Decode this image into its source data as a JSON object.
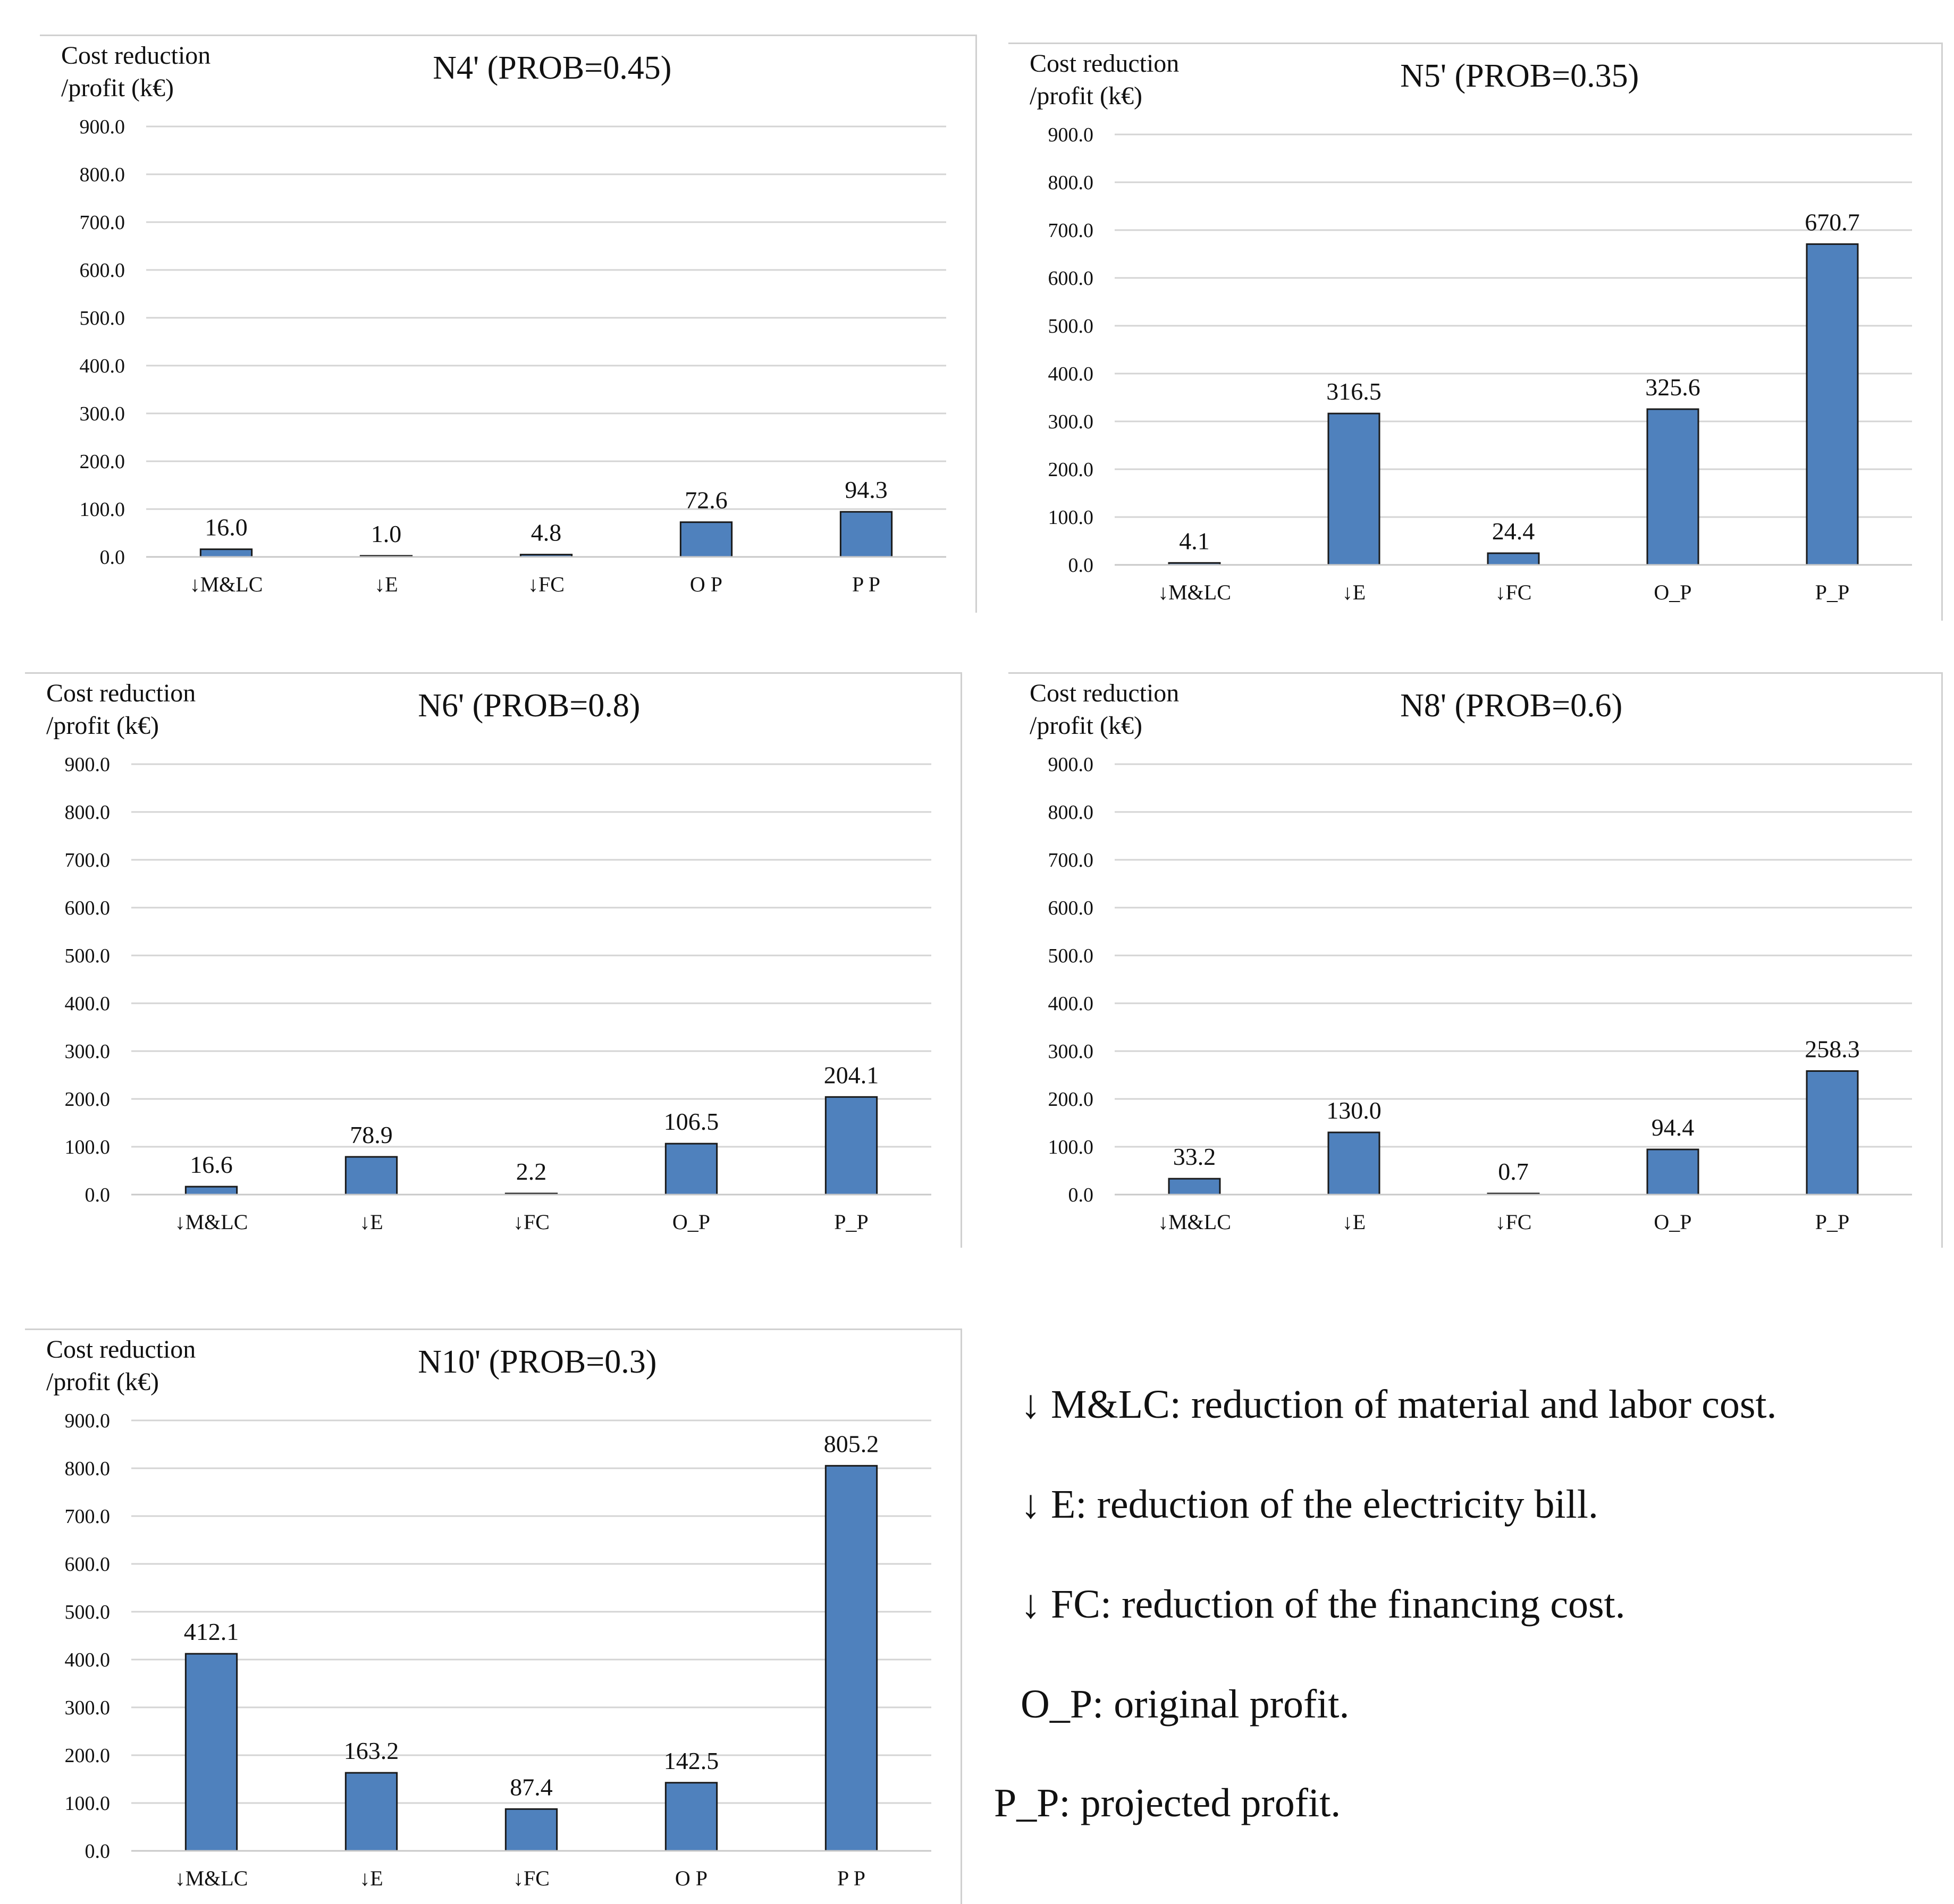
{
  "chart_data": [
    {
      "type": "bar",
      "title": "N4' (PROB=0.45)",
      "ylabel": "Cost reduction\n/profit (k€)",
      "categories": [
        "↓M&LC",
        "↓E",
        "↓FC",
        "O_P",
        "P_P"
      ],
      "category_display": [
        "↓M&LC",
        "↓E",
        "↓FC",
        "O  P",
        "P  P"
      ],
      "values": [
        16.0,
        1.0,
        4.8,
        72.6,
        94.3
      ],
      "value_labels": [
        "16.0",
        "1.0",
        "4.8",
        "72.6",
        "94.3"
      ],
      "ylim": [
        0,
        900
      ],
      "yticks": [
        "0.0",
        "100.0",
        "200.0",
        "300.0",
        "400.0",
        "500.0",
        "600.0",
        "700.0",
        "800.0",
        "900.0"
      ],
      "grid": true,
      "bar_color": "#4F81BD"
    },
    {
      "type": "bar",
      "title": "N5' (PROB=0.35)",
      "ylabel": "Cost reduction\n/profit (k€)",
      "categories": [
        "↓M&LC",
        "↓E",
        "↓FC",
        "O_P",
        "P_P"
      ],
      "category_display": [
        "↓M&LC",
        "↓E",
        "↓FC",
        "O_P",
        "P_P"
      ],
      "values": [
        4.1,
        316.5,
        24.4,
        325.6,
        670.7
      ],
      "value_labels": [
        "4.1",
        "316.5",
        "24.4",
        "325.6",
        "670.7"
      ],
      "ylim": [
        0,
        900
      ],
      "yticks": [
        "0.0",
        "100.0",
        "200.0",
        "300.0",
        "400.0",
        "500.0",
        "600.0",
        "700.0",
        "800.0",
        "900.0"
      ],
      "grid": true,
      "bar_color": "#4F81BD"
    },
    {
      "type": "bar",
      "title": "N6' (PROB=0.8)",
      "ylabel": "Cost reduction\n/profit (k€)",
      "categories": [
        "↓M&LC",
        "↓E",
        "↓FC",
        "O_P",
        "P_P"
      ],
      "category_display": [
        "↓M&LC",
        "↓E",
        "↓FC",
        "O_P",
        "P_P"
      ],
      "values": [
        16.6,
        78.9,
        2.2,
        106.5,
        204.1
      ],
      "value_labels": [
        "16.6",
        "78.9",
        "2.2",
        "106.5",
        "204.1"
      ],
      "ylim": [
        0,
        900
      ],
      "yticks": [
        "0.0",
        "100.0",
        "200.0",
        "300.0",
        "400.0",
        "500.0",
        "600.0",
        "700.0",
        "800.0",
        "900.0"
      ],
      "grid": true,
      "bar_color": "#4F81BD"
    },
    {
      "type": "bar",
      "title": "N8' (PROB=0.6)",
      "ylabel": "Cost reduction\n/profit (k€)",
      "categories": [
        "↓M&LC",
        "↓E",
        "↓FC",
        "O_P",
        "P_P"
      ],
      "category_display": [
        "↓M&LC",
        "↓E",
        "↓FC",
        "O_P",
        "P_P"
      ],
      "values": [
        33.2,
        130.0,
        0.7,
        94.4,
        258.3
      ],
      "value_labels": [
        "33.2",
        "130.0",
        "0.7",
        "94.4",
        "258.3"
      ],
      "ylim": [
        0,
        900
      ],
      "yticks": [
        "0.0",
        "100.0",
        "200.0",
        "300.0",
        "400.0",
        "500.0",
        "600.0",
        "700.0",
        "800.0",
        "900.0"
      ],
      "grid": true,
      "bar_color": "#4F81BD"
    },
    {
      "type": "bar",
      "title": "N10' (PROB=0.3)",
      "ylabel": "Cost reduction\n/profit (k€)",
      "categories": [
        "↓M&LC",
        "↓E",
        "↓FC",
        "O_P",
        "P_P"
      ],
      "category_display": [
        "↓M&LC",
        "↓E",
        "↓FC",
        "O  P",
        "P  P"
      ],
      "values": [
        412.1,
        163.2,
        87.4,
        142.5,
        805.2
      ],
      "value_labels": [
        "412.1",
        "163.2",
        "87.4",
        "142.5",
        "805.2"
      ],
      "ylim": [
        0,
        900
      ],
      "yticks": [
        "0.0",
        "100.0",
        "200.0",
        "300.0",
        "400.0",
        "500.0",
        "600.0",
        "700.0",
        "800.0",
        "900.0"
      ],
      "grid": true,
      "bar_color": "#4F81BD"
    }
  ],
  "legend": {
    "items": [
      "↓ M&LC: reduction of material and labor cost.",
      "↓ E: reduction of the electricity bill.",
      "↓ FC: reduction of the financing cost.",
      "O_P: original profit.",
      "P_P: projected profit."
    ]
  }
}
